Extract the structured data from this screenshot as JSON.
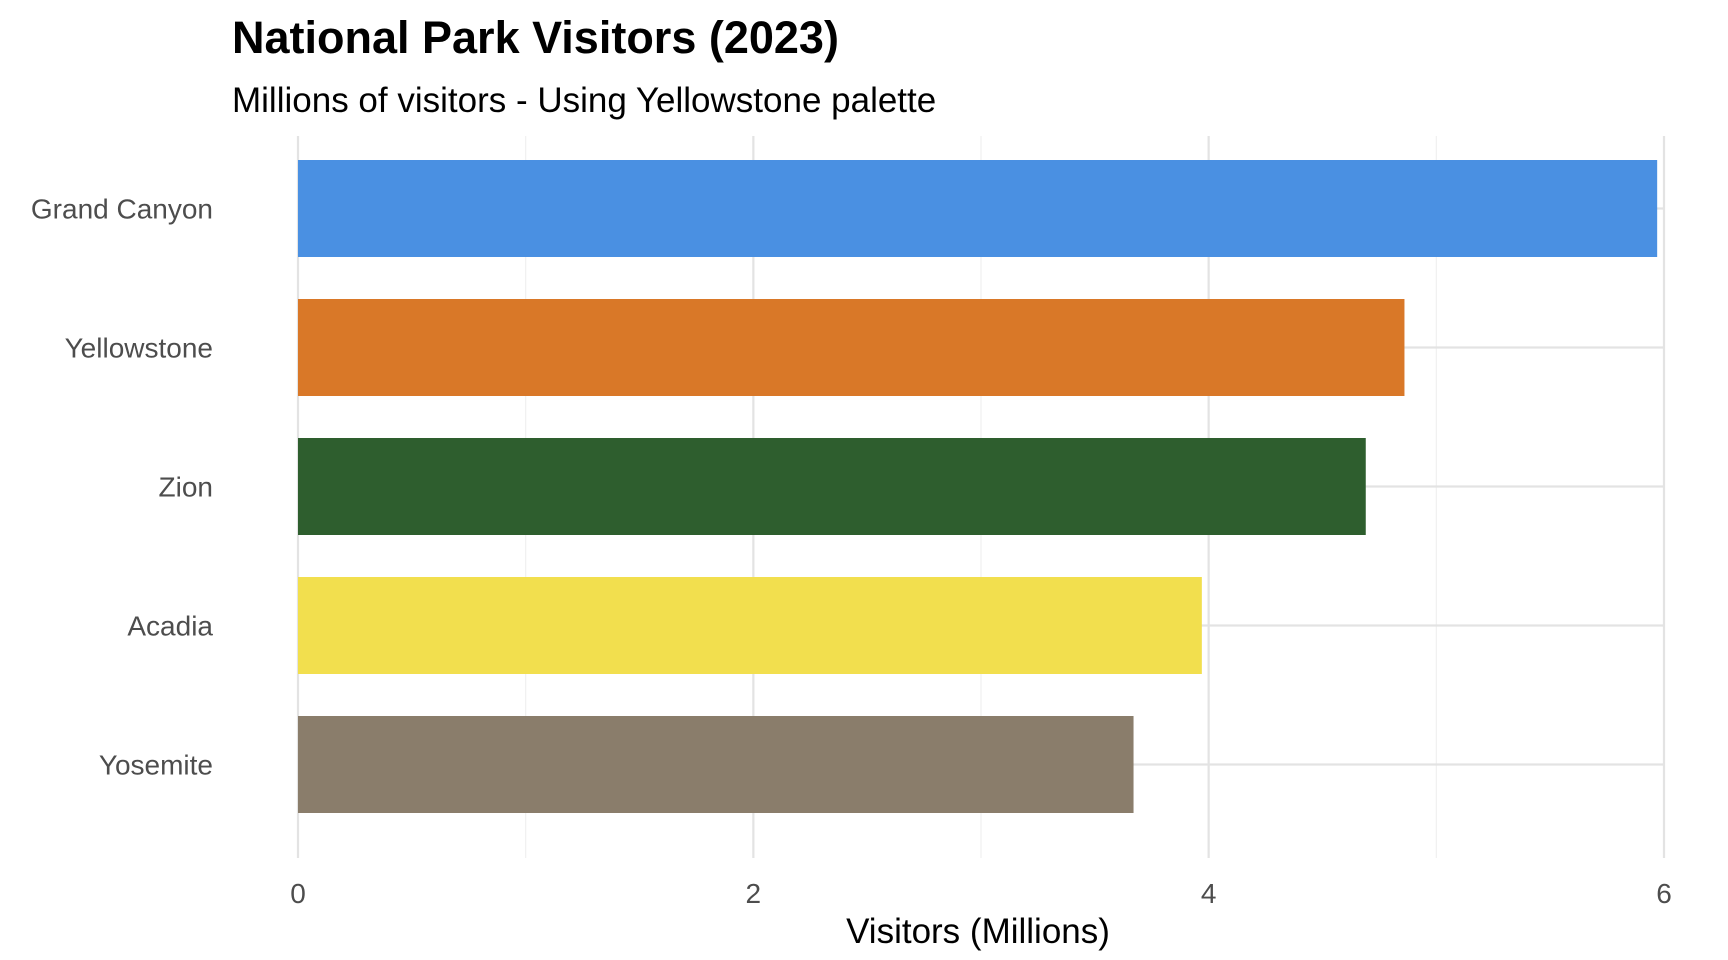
{
  "chart_data": {
    "type": "bar",
    "orientation": "horizontal",
    "title": "National Park Visitors (2023)",
    "subtitle": "Millions of visitors - Using Yellowstone palette",
    "xlabel": "Visitors (Millions)",
    "ylabel": "",
    "xlim": [
      0,
      6
    ],
    "xticks": [
      0,
      2,
      4,
      6
    ],
    "minor_ticks": [
      1,
      3,
      5
    ],
    "grid": true,
    "legend": "none",
    "categories": [
      "Grand Canyon",
      "Yellowstone",
      "Zion",
      "Acadia",
      "Yosemite"
    ],
    "values": [
      5.97,
      4.86,
      4.69,
      3.97,
      3.67
    ],
    "colors": [
      "#4A90E2",
      "#D97828",
      "#2E5E2E",
      "#F2DF4E",
      "#8A7D6B"
    ]
  }
}
